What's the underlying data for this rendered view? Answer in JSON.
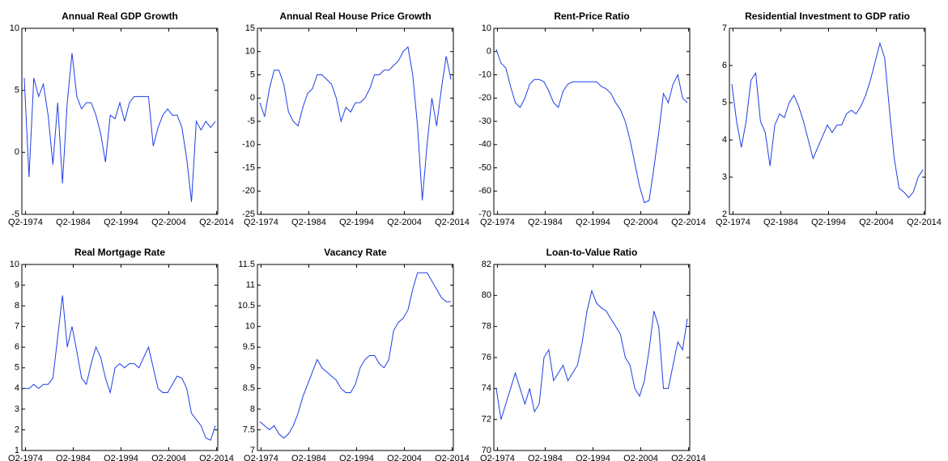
{
  "chart_data": [
    {
      "type": "line",
      "title": "Annual Real GDP Growth",
      "color": "#1f3fe6",
      "x": [
        1974,
        1975,
        1976,
        1977,
        1978,
        1979,
        1980,
        1981,
        1982,
        1983,
        1984,
        1985,
        1986,
        1987,
        1988,
        1989,
        1990,
        1991,
        1992,
        1993,
        1994,
        1995,
        1996,
        1997,
        1998,
        1999,
        2000,
        2001,
        2002,
        2003,
        2004,
        2005,
        2006,
        2007,
        2008,
        2009,
        2010,
        2011,
        2012,
        2013,
        2014
      ],
      "values": [
        6,
        -2,
        6,
        4.5,
        5.5,
        3,
        -1,
        4,
        -2.5,
        4,
        8,
        4.5,
        3.5,
        4,
        4,
        3,
        1.5,
        -0.8,
        3,
        2.7,
        4,
        2.5,
        4,
        4.5,
        4.5,
        4.5,
        4.5,
        0.5,
        2,
        3,
        3.5,
        3,
        3,
        2,
        -0.5,
        -4,
        2.5,
        1.8,
        2.5,
        2,
        2.5
      ],
      "xlim": [
        1973.5,
        2014.5
      ],
      "ylim": [
        -5,
        10
      ],
      "yticks": [
        -5,
        0,
        5,
        10
      ],
      "xticks": [
        {
          "value": 1974.25,
          "label": "Q2-1974"
        },
        {
          "value": 1984.25,
          "label": "Q2-1984"
        },
        {
          "value": 1994.25,
          "label": "Q2-1994"
        },
        {
          "value": 2004.25,
          "label": "Q2-2004"
        },
        {
          "value": 2014.25,
          "label": "Q2-2014"
        }
      ]
    },
    {
      "type": "line",
      "title": "Annual Real House Price Growth",
      "color": "#1f3fe6",
      "x": [
        1974,
        1975,
        1976,
        1977,
        1978,
        1979,
        1980,
        1981,
        1982,
        1983,
        1984,
        1985,
        1986,
        1987,
        1988,
        1989,
        1990,
        1991,
        1992,
        1993,
        1994,
        1995,
        1996,
        1997,
        1998,
        1999,
        2000,
        2001,
        2002,
        2003,
        2004,
        2005,
        2006,
        2007,
        2008,
        2009,
        2010,
        2011,
        2012,
        2013,
        2014
      ],
      "values": [
        -1,
        -4,
        2,
        6,
        6,
        3,
        -3,
        -5,
        -6,
        -2,
        1,
        2,
        5,
        5,
        4,
        3,
        0,
        -5,
        -2,
        -3,
        -1,
        -1,
        0,
        2,
        5,
        5,
        6,
        6,
        7,
        8,
        10,
        11,
        5,
        -6,
        -22,
        -10,
        0,
        -6,
        2,
        9,
        4
      ],
      "xlim": [
        1973.5,
        2014.5
      ],
      "ylim": [
        -25,
        15
      ],
      "yticks": [
        -25,
        -20,
        -15,
        -10,
        -5,
        0,
        5,
        10,
        15
      ],
      "xticks": [
        {
          "value": 1974.25,
          "label": "Q2-1974"
        },
        {
          "value": 1984.25,
          "label": "Q2-1984"
        },
        {
          "value": 1994.25,
          "label": "Q2-1994"
        },
        {
          "value": 2004.25,
          "label": "Q2-2004"
        },
        {
          "value": 2014.25,
          "label": "Q2-2014"
        }
      ]
    },
    {
      "type": "line",
      "title": "Rent-Price Ratio",
      "color": "#1f3fe6",
      "x": [
        1974,
        1975,
        1976,
        1977,
        1978,
        1979,
        1980,
        1981,
        1982,
        1983,
        1984,
        1985,
        1986,
        1987,
        1988,
        1989,
        1990,
        1991,
        1992,
        1993,
        1994,
        1995,
        1996,
        1997,
        1998,
        1999,
        2000,
        2001,
        2002,
        2003,
        2004,
        2005,
        2006,
        2007,
        2008,
        2009,
        2010,
        2011,
        2012,
        2013,
        2014
      ],
      "values": [
        1,
        -5,
        -7,
        -15,
        -22,
        -24,
        -20,
        -14,
        -12,
        -12,
        -13,
        -17,
        -22,
        -24,
        -17,
        -14,
        -13,
        -13,
        -13,
        -13,
        -13,
        -13,
        -15,
        -16,
        -18,
        -22,
        -25,
        -30,
        -38,
        -48,
        -58,
        -65,
        -64,
        -50,
        -35,
        -18,
        -22,
        -14,
        -10,
        -20,
        -22
      ],
      "xlim": [
        1973.5,
        2014.5
      ],
      "ylim": [
        -70,
        10
      ],
      "yticks": [
        -70,
        -60,
        -50,
        -40,
        -30,
        -20,
        -10,
        0,
        10
      ],
      "xticks": [
        {
          "value": 1974.25,
          "label": "Q2-1974"
        },
        {
          "value": 1984.25,
          "label": "Q2-1984"
        },
        {
          "value": 1994.25,
          "label": "Q2-1994"
        },
        {
          "value": 2004.25,
          "label": "Q2-2004"
        },
        {
          "value": 2014.25,
          "label": "Q2-2014"
        }
      ]
    },
    {
      "type": "line",
      "title": "Residential Investment to GDP ratio",
      "color": "#1f3fe6",
      "x": [
        1974,
        1975,
        1976,
        1977,
        1978,
        1979,
        1980,
        1981,
        1982,
        1983,
        1984,
        1985,
        1986,
        1987,
        1988,
        1989,
        1990,
        1991,
        1992,
        1993,
        1994,
        1995,
        1996,
        1997,
        1998,
        1999,
        2000,
        2001,
        2002,
        2003,
        2004,
        2005,
        2006,
        2007,
        2008,
        2009,
        2010,
        2011,
        2012,
        2013,
        2014
      ],
      "values": [
        5.5,
        4.5,
        3.8,
        4.5,
        5.6,
        5.8,
        4.5,
        4.2,
        3.3,
        4.4,
        4.7,
        4.6,
        5.0,
        5.2,
        4.9,
        4.5,
        4.0,
        3.5,
        3.8,
        4.1,
        4.4,
        4.2,
        4.4,
        4.4,
        4.7,
        4.8,
        4.7,
        4.9,
        5.2,
        5.6,
        6.1,
        6.6,
        6.2,
        4.8,
        3.5,
        2.7,
        2.6,
        2.45,
        2.6,
        3.0,
        3.2
      ],
      "xlim": [
        1973.5,
        2014.5
      ],
      "ylim": [
        2,
        7
      ],
      "yticks": [
        2,
        3,
        4,
        5,
        6,
        7
      ],
      "xticks": [
        {
          "value": 1974.25,
          "label": "Q2-1974"
        },
        {
          "value": 1984.25,
          "label": "Q2-1984"
        },
        {
          "value": 1994.25,
          "label": "Q2-1994"
        },
        {
          "value": 2004.25,
          "label": "Q2-2004"
        },
        {
          "value": 2014.25,
          "label": "Q2-2014"
        }
      ]
    },
    {
      "type": "line",
      "title": "Real Mortgage Rate",
      "color": "#1f3fe6",
      "x": [
        1974,
        1975,
        1976,
        1977,
        1978,
        1979,
        1980,
        1981,
        1982,
        1983,
        1984,
        1985,
        1986,
        1987,
        1988,
        1989,
        1990,
        1991,
        1992,
        1993,
        1994,
        1995,
        1996,
        1997,
        1998,
        1999,
        2000,
        2001,
        2002,
        2003,
        2004,
        2005,
        2006,
        2007,
        2008,
        2009,
        2010,
        2011,
        2012,
        2013,
        2014
      ],
      "values": [
        4,
        4,
        4.2,
        4,
        4.2,
        4.2,
        4.5,
        6.5,
        8.5,
        6,
        7,
        5.8,
        4.5,
        4.2,
        5.2,
        6,
        5.5,
        4.5,
        3.8,
        5,
        5.2,
        5,
        5.2,
        5.2,
        5,
        5.5,
        6,
        5,
        4,
        3.8,
        3.8,
        4.2,
        4.6,
        4.5,
        4,
        2.8,
        2.5,
        2.2,
        1.6,
        1.5,
        2.2
      ],
      "xlim": [
        1973.5,
        2014.5
      ],
      "ylim": [
        1,
        10
      ],
      "yticks": [
        1,
        2,
        3,
        4,
        5,
        6,
        7,
        8,
        9,
        10
      ],
      "xticks": [
        {
          "value": 1974.25,
          "label": "Q2-1974"
        },
        {
          "value": 1984.25,
          "label": "Q2-1984"
        },
        {
          "value": 1994.25,
          "label": "Q2-1994"
        },
        {
          "value": 2004.25,
          "label": "Q2-2004"
        },
        {
          "value": 2014.25,
          "label": "Q2-2014"
        }
      ]
    },
    {
      "type": "line",
      "title": "Vacancy Rate",
      "color": "#1f3fe6",
      "x": [
        1974,
        1975,
        1976,
        1977,
        1978,
        1979,
        1980,
        1981,
        1982,
        1983,
        1984,
        1985,
        1986,
        1987,
        1988,
        1989,
        1990,
        1991,
        1992,
        1993,
        1994,
        1995,
        1996,
        1997,
        1998,
        1999,
        2000,
        2001,
        2002,
        2003,
        2004,
        2005,
        2006,
        2007,
        2008,
        2009,
        2010,
        2011,
        2012,
        2013,
        2014
      ],
      "values": [
        7.7,
        7.6,
        7.5,
        7.6,
        7.4,
        7.3,
        7.4,
        7.6,
        7.9,
        8.3,
        8.6,
        8.9,
        9.2,
        9.0,
        8.9,
        8.8,
        8.7,
        8.5,
        8.4,
        8.4,
        8.6,
        9.0,
        9.2,
        9.3,
        9.3,
        9.1,
        9.0,
        9.2,
        9.9,
        10.1,
        10.2,
        10.4,
        10.9,
        11.3,
        11.3,
        11.3,
        11.1,
        10.9,
        10.7,
        10.6,
        10.6
      ],
      "xlim": [
        1973.5,
        2014.5
      ],
      "ylim": [
        7,
        11.5
      ],
      "yticks": [
        7,
        7.5,
        8,
        8.5,
        9,
        9.5,
        10,
        10.5,
        11,
        11.5
      ],
      "xticks": [
        {
          "value": 1974.25,
          "label": "Q2-1974"
        },
        {
          "value": 1984.25,
          "label": "Q2-1984"
        },
        {
          "value": 1994.25,
          "label": "Q2-1994"
        },
        {
          "value": 2004.25,
          "label": "Q2-2004"
        },
        {
          "value": 2014.25,
          "label": "Q2-2014"
        }
      ]
    },
    {
      "type": "line",
      "title": "Loan-to-Value Ratio",
      "color": "#1f3fe6",
      "x": [
        1974,
        1975,
        1976,
        1977,
        1978,
        1979,
        1980,
        1981,
        1982,
        1983,
        1984,
        1985,
        1986,
        1987,
        1988,
        1989,
        1990,
        1991,
        1992,
        1993,
        1994,
        1995,
        1996,
        1997,
        1998,
        1999,
        2000,
        2001,
        2002,
        2003,
        2004,
        2005,
        2006,
        2007,
        2008,
        2009,
        2010,
        2011,
        2012,
        2013,
        2014
      ],
      "values": [
        74,
        72,
        73,
        74,
        75,
        74,
        73,
        74,
        72.5,
        73,
        76,
        76.5,
        74.5,
        75,
        75.5,
        74.5,
        75,
        75.5,
        77,
        79,
        80.3,
        79.5,
        79.2,
        79,
        78.5,
        78,
        77.5,
        76,
        75.5,
        74,
        73.5,
        74.5,
        76.5,
        79,
        78,
        74,
        74,
        75.5,
        77,
        76.5,
        78.5
      ],
      "xlim": [
        1973.5,
        2014.5
      ],
      "ylim": [
        70,
        82
      ],
      "yticks": [
        70,
        72,
        74,
        76,
        78,
        80,
        82
      ],
      "xticks": [
        {
          "value": 1974.25,
          "label": "Q2-1974"
        },
        {
          "value": 1984.25,
          "label": "Q2-1984"
        },
        {
          "value": 1994.25,
          "label": "Q2-1994"
        },
        {
          "value": 2004.25,
          "label": "Q2-2004"
        },
        {
          "value": 2014.25,
          "label": "Q2-2014"
        }
      ]
    }
  ]
}
